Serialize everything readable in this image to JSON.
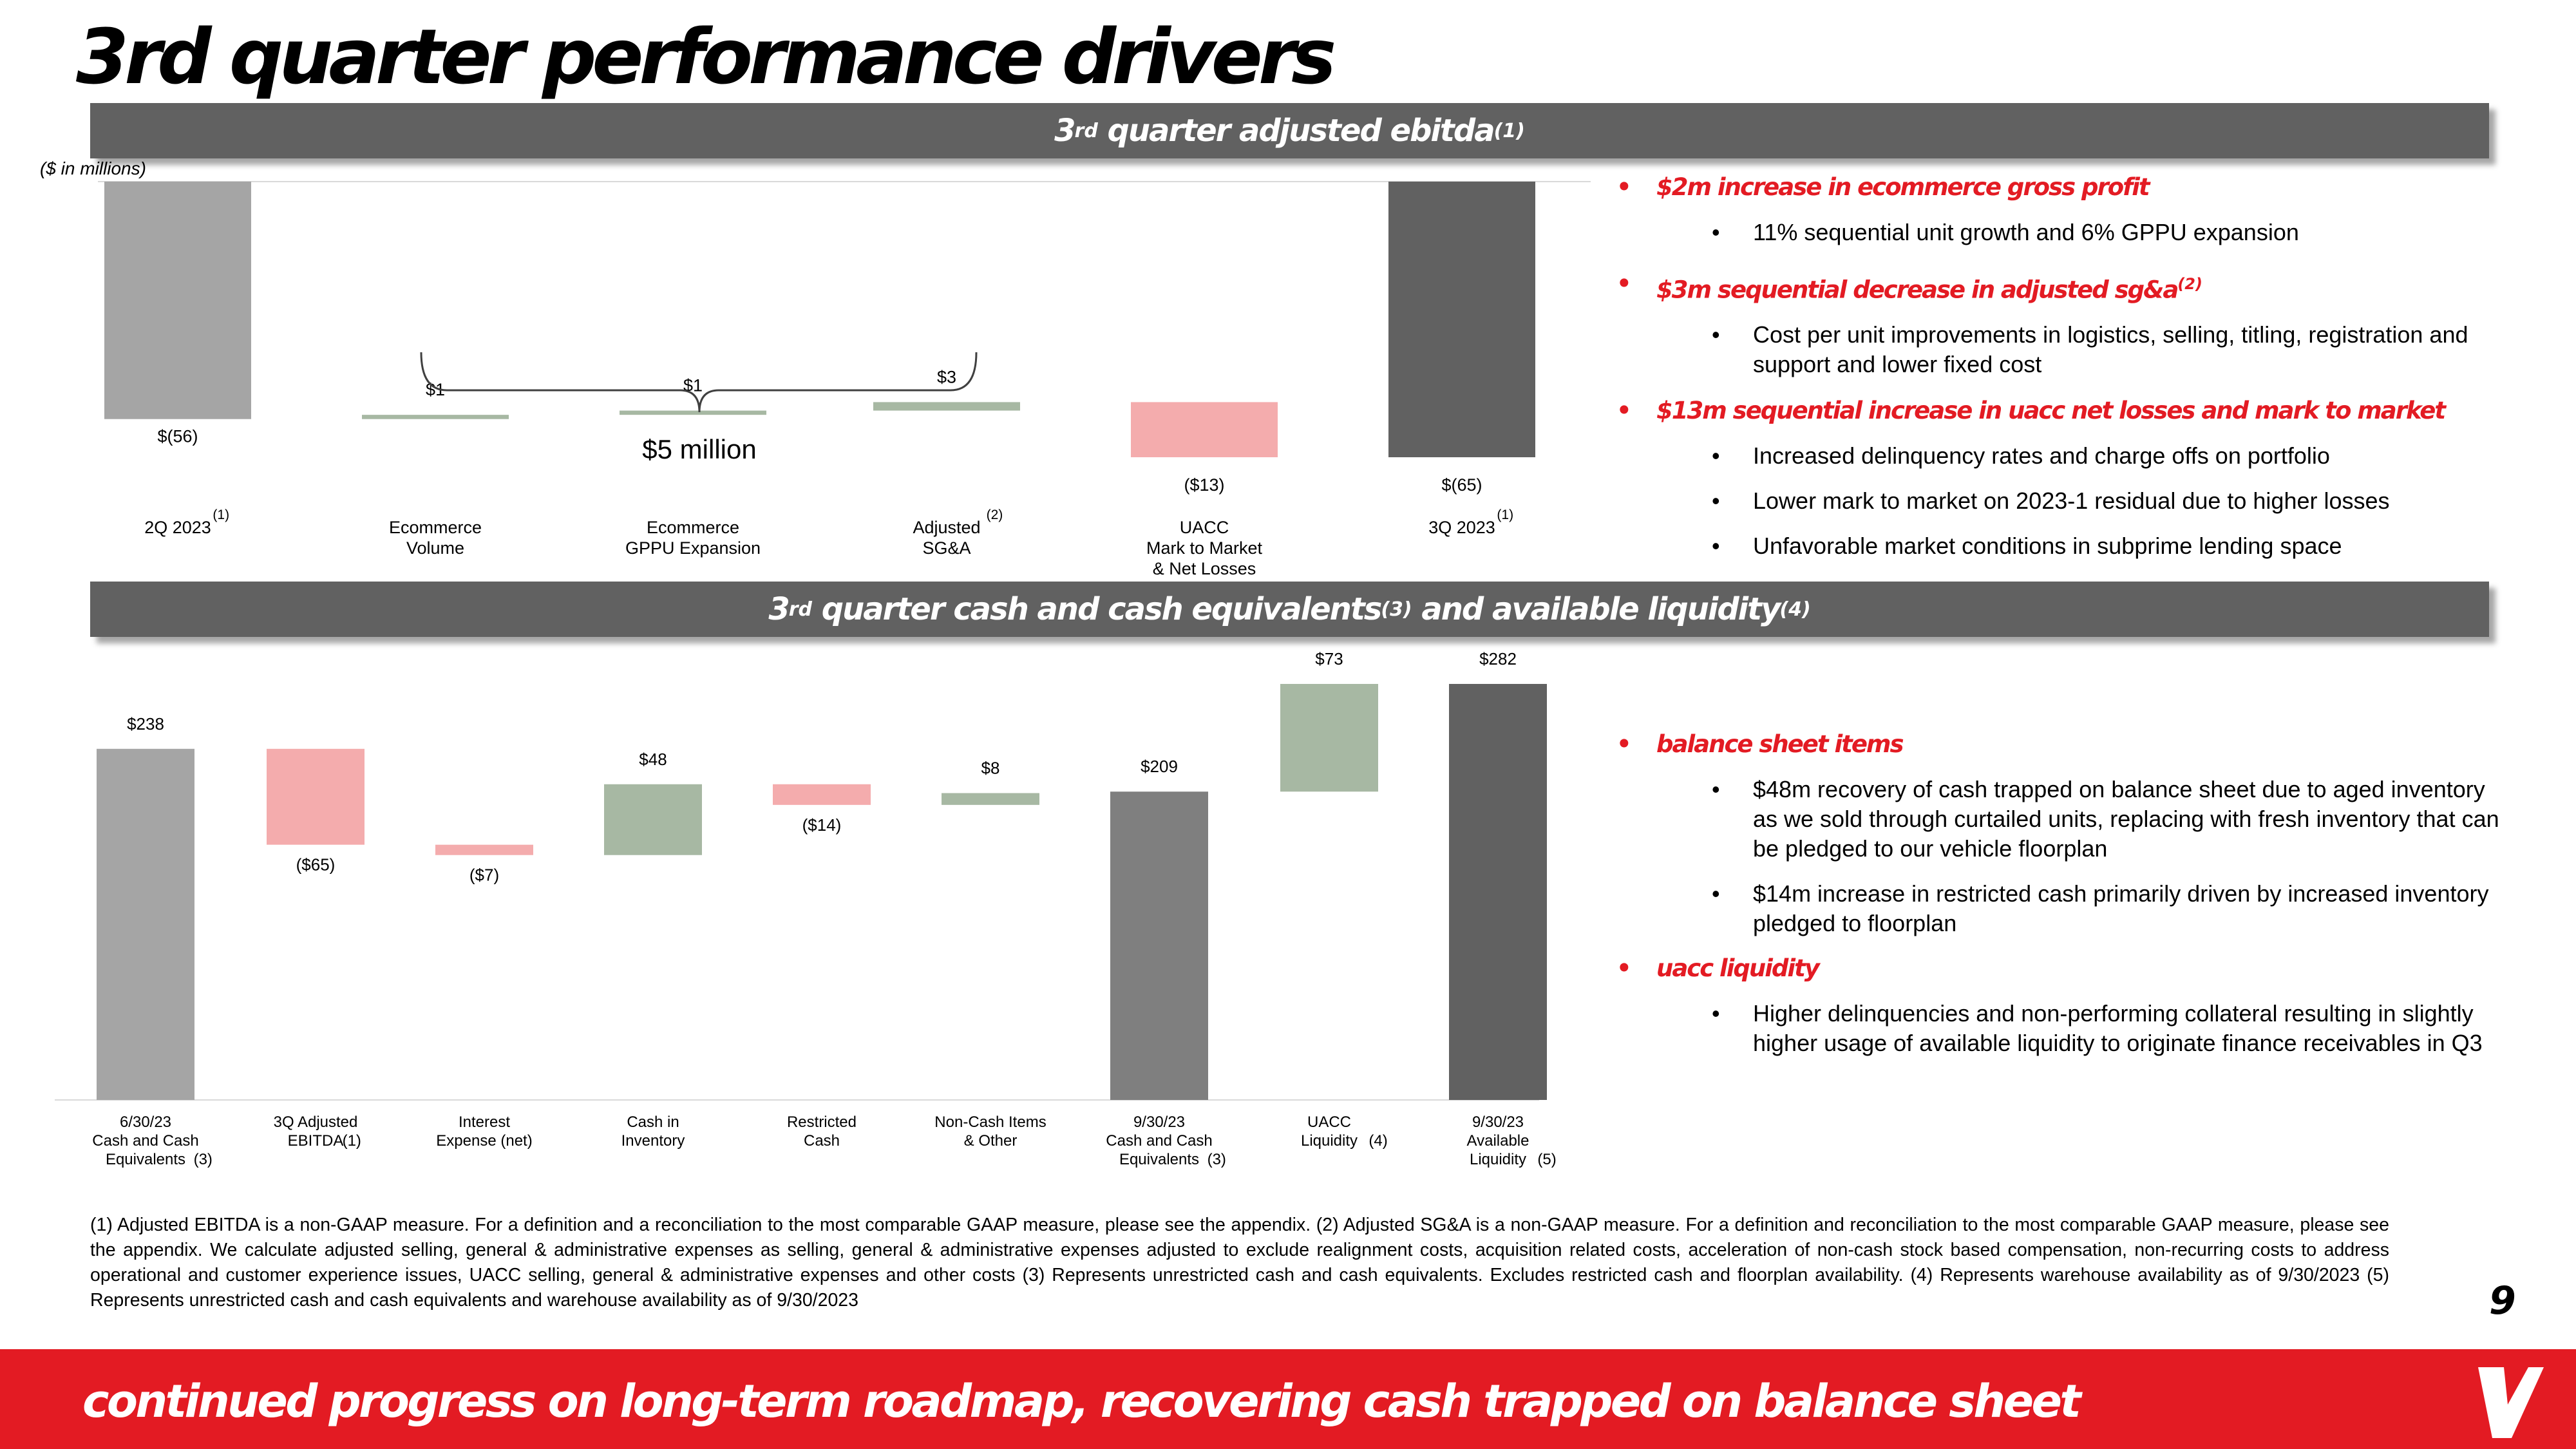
{
  "page": {
    "title": "3rd quarter performance drivers",
    "page_number": "9",
    "footer": "continued progress on long-term roadmap, recovering cash trapped on balance sheet",
    "logo_icon": "vroom-v-logo-icon",
    "colors": {
      "accent": "#e31b23",
      "bar": "#616161"
    }
  },
  "section1": {
    "title_pre": "3",
    "title_sup": "rd",
    "title_post": " quarter adjusted ebitda",
    "title_note": "(1)",
    "units": "($ in millions)",
    "brace_label": "$5 million"
  },
  "section2": {
    "title_pre": "3",
    "title_sup": "rd",
    "title_mid": " quarter cash and cash equivalents",
    "title_note1": "(3)",
    "title_mid2": " and available liquidity",
    "title_note2": "(4)"
  },
  "bullets1": {
    "h1": "$2m increase in ecommerce gross profit",
    "s1": "11% sequential unit growth and 6% GPPU expansion",
    "h2": "$3m sequential decrease in adjusted sg&a",
    "h2_note": "(2)",
    "s2": "Cost per unit improvements in logistics, selling, titling, registration and support and lower fixed cost",
    "h3": "$13m sequential increase in uacc net losses and mark to market",
    "s3": "Increased delinquency rates and charge offs on portfolio",
    "s4": "Lower mark to market on 2023-1 residual due to higher losses",
    "s5": "Unfavorable market conditions in subprime lending space"
  },
  "bullets2": {
    "h1": "balance sheet items",
    "s1": "$48m recovery of cash trapped on balance sheet due to aged inventory as we sold through curtailed units, replacing with fresh inventory that can be pledged to our vehicle floorplan",
    "s2": "$14m increase in restricted cash primarily driven by increased inventory pledged to floorplan",
    "h2": "uacc liquidity",
    "s3": "Higher delinquencies and non-performing collateral resulting in slightly higher usage of available liquidity to originate finance receivables in Q3"
  },
  "footnote": "(1) Adjusted EBITDA is a non-GAAP measure. For a definition and a reconciliation to the most comparable GAAP measure, please see the appendix. (2) Adjusted SG&A is a non-GAAP measure. For a definition and reconciliation to the most comparable GAAP measure, please see the appendix. We calculate adjusted selling, general & administrative expenses as selling, general & administrative expenses adjusted to exclude realignment costs, acquisition related costs, acceleration of non-cash stock based compensation, non-recurring costs to address operational and customer experience issues, UACC selling, general & administrative expenses and other costs (3) Represents unrestricted cash and cash equivalents. Excludes restricted cash and floorplan availability. (4) Represents warehouse availability as of 9/30/2023 (5) Represents unrestricted cash and cash equivalents and warehouse availability as of 9/30/2023",
  "chart_data": [
    {
      "type": "bar",
      "subtype": "waterfall",
      "units": "$ millions",
      "categories": [
        {
          "lines": [
            "2Q 2023"
          ],
          "note": "(1)"
        },
        {
          "lines": [
            "Ecommerce",
            "Volume"
          ],
          "note": ""
        },
        {
          "lines": [
            "Ecommerce",
            "GPPU Expansion"
          ],
          "note": ""
        },
        {
          "lines": [
            "Adjusted",
            "SG&A"
          ],
          "note": "(2)"
        },
        {
          "lines": [
            "UACC",
            "Mark to Market",
            "& Net Losses"
          ],
          "note": ""
        },
        {
          "lines": [
            "3Q 2023"
          ],
          "note": "(1)"
        }
      ],
      "bars": [
        {
          "kind": "total",
          "start": 0,
          "end": -56,
          "label": "$(56)",
          "label_pos": "inside-bottom",
          "color": "#a5a5a5"
        },
        {
          "kind": "delta",
          "start": -56,
          "end": -55,
          "label": "$1",
          "label_pos": "above",
          "color": "#a7b8a3"
        },
        {
          "kind": "delta",
          "start": -55,
          "end": -54,
          "label": "$1",
          "label_pos": "above",
          "color": "#a7b8a3"
        },
        {
          "kind": "delta",
          "start": -54,
          "end": -52,
          "label": "$3",
          "label_pos": "above",
          "color": "#a7b8a3"
        },
        {
          "kind": "delta",
          "start": -52,
          "end": -65,
          "label": "($13)",
          "label_pos": "below",
          "color": "#f4acad"
        },
        {
          "kind": "total",
          "start": 0,
          "end": -65,
          "label": "$(65)",
          "label_pos": "below",
          "color": "#616161"
        }
      ],
      "ylim": [
        -67,
        0
      ]
    },
    {
      "type": "bar",
      "subtype": "waterfall",
      "units": "$ millions",
      "categories": [
        {
          "lines": [
            "6/30/23",
            "Cash and Cash",
            "Equivalents"
          ],
          "note": "(3)"
        },
        {
          "lines": [
            "3Q Adjusted",
            "EBITDA"
          ],
          "note": "(1)"
        },
        {
          "lines": [
            "Interest",
            "Expense (net)"
          ],
          "note": ""
        },
        {
          "lines": [
            "Cash in",
            "Inventory"
          ],
          "note": ""
        },
        {
          "lines": [
            "Restricted",
            "Cash"
          ],
          "note": ""
        },
        {
          "lines": [
            "Non-Cash Items",
            "& Other"
          ],
          "note": ""
        },
        {
          "lines": [
            "9/30/23",
            "Cash and Cash",
            "Equivalents"
          ],
          "note": "(3)"
        },
        {
          "lines": [
            "UACC",
            "Liquidity"
          ],
          "note": "(4)"
        },
        {
          "lines": [
            "9/30/23",
            "Available",
            "Liquidity"
          ],
          "note": "(5)"
        }
      ],
      "bars": [
        {
          "kind": "total",
          "start": 0,
          "end": 238,
          "label": "$238",
          "label_pos": "above",
          "color": "#a5a5a5"
        },
        {
          "kind": "delta",
          "start": 238,
          "end": 173,
          "label": "($65)",
          "label_pos": "below",
          "color": "#f4acad"
        },
        {
          "kind": "delta",
          "start": 173,
          "end": 166,
          "label": "($7)",
          "label_pos": "below",
          "color": "#f4acad"
        },
        {
          "kind": "delta",
          "start": 166,
          "end": 214,
          "label": "$48",
          "label_pos": "above",
          "color": "#a7b8a3"
        },
        {
          "kind": "delta",
          "start": 214,
          "end": 200,
          "label": "($14)",
          "label_pos": "below",
          "color": "#f4acad"
        },
        {
          "kind": "delta",
          "start": 200,
          "end": 208,
          "label": "$8",
          "label_pos": "above",
          "color": "#a7b8a3"
        },
        {
          "kind": "total",
          "start": 0,
          "end": 209,
          "label": "$209",
          "label_pos": "above",
          "color": "#7f7f7f"
        },
        {
          "kind": "delta",
          "start": 209,
          "end": 282,
          "label": "$73",
          "label_pos": "above",
          "color": "#a7b8a3"
        },
        {
          "kind": "total",
          "start": 0,
          "end": 282,
          "label": "$282",
          "label_pos": "above",
          "color": "#616161"
        }
      ],
      "ylim": [
        0,
        282
      ]
    }
  ]
}
